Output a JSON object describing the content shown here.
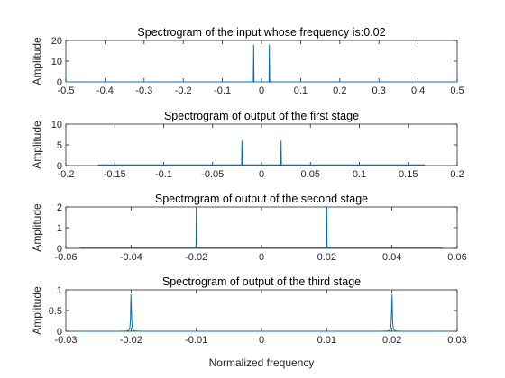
{
  "figure": {
    "xlabel_bottom": "Normalized frequency"
  },
  "colors": {
    "line": "#0072BD",
    "axis": "#262626",
    "background": "#ffffff"
  },
  "chart_data": [
    {
      "type": "line",
      "title": "Spectrogram of the input whose frequency is:0.02",
      "xlabel": "",
      "ylabel": "Amplitude",
      "xlim": [
        -0.5,
        0.5
      ],
      "ylim": [
        0,
        20
      ],
      "xticks": [
        -0.5,
        -0.4,
        -0.3,
        -0.2,
        -0.1,
        0,
        0.1,
        0.2,
        0.3,
        0.4,
        0.5
      ],
      "xtick_labels": [
        "-0.5",
        "-0.4",
        "-0.3",
        "-0.2",
        "-0.1",
        "0",
        "0.1",
        "0.2",
        "0.3",
        "0.4",
        "0.5"
      ],
      "yticks": [
        0,
        10,
        20
      ],
      "ytick_labels": [
        "0",
        "10",
        "20"
      ],
      "grid": false,
      "data_range": [
        -0.5,
        0.5
      ],
      "peaks": [
        {
          "x": -0.02,
          "y": 18
        },
        {
          "x": 0.02,
          "y": 18
        }
      ],
      "peak_shape": "spike",
      "baseline": 0
    },
    {
      "type": "line",
      "title": "Spectrogram of output of the first stage",
      "xlabel": "",
      "ylabel": "Amplitude",
      "xlim": [
        -0.2,
        0.2
      ],
      "ylim": [
        0,
        10
      ],
      "xticks": [
        -0.2,
        -0.15,
        -0.1,
        -0.05,
        0,
        0.05,
        0.1,
        0.15,
        0.2
      ],
      "xtick_labels": [
        "-0.2",
        "-0.15",
        "-0.1",
        "-0.05",
        "0",
        "0.05",
        "0.1",
        "0.15",
        "0.2"
      ],
      "yticks": [
        0,
        5,
        10
      ],
      "ytick_labels": [
        "0",
        "5",
        "10"
      ],
      "grid": false,
      "data_range": [
        -0.167,
        0.167
      ],
      "peaks": [
        {
          "x": -0.02,
          "y": 6
        },
        {
          "x": 0.02,
          "y": 6
        }
      ],
      "peak_shape": "spike",
      "baseline": 0.15
    },
    {
      "type": "line",
      "title": "Spectrogram of output of the second stage",
      "xlabel": "",
      "ylabel": "Amplitude",
      "xlim": [
        -0.06,
        0.06
      ],
      "ylim": [
        0,
        2
      ],
      "xticks": [
        -0.06,
        -0.04,
        -0.02,
        0,
        0.02,
        0.04,
        0.06
      ],
      "xtick_labels": [
        "-0.06",
        "-0.04",
        "-0.02",
        "0",
        "0.02",
        "0.04",
        "0.06"
      ],
      "yticks": [
        0,
        1,
        2
      ],
      "ytick_labels": [
        "0",
        "1",
        "2"
      ],
      "grid": false,
      "data_range": [
        -0.0556,
        0.0556
      ],
      "peaks": [
        {
          "x": -0.02,
          "y": 2.0
        },
        {
          "x": 0.02,
          "y": 2.0
        }
      ],
      "peak_shape": "spike",
      "baseline": 0.02
    },
    {
      "type": "line",
      "title": "Spectrogram of output of the third stage",
      "xlabel": "Normalized frequency",
      "ylabel": "Amplitude",
      "xlim": [
        -0.03,
        0.03
      ],
      "ylim": [
        0,
        1
      ],
      "xticks": [
        -0.03,
        -0.02,
        -0.01,
        0,
        0.01,
        0.02,
        0.03
      ],
      "xtick_labels": [
        "-0.03",
        "-0.02",
        "-0.01",
        "0",
        "0.01",
        "0.02",
        "0.03"
      ],
      "yticks": [
        0,
        0.5,
        1
      ],
      "ytick_labels": [
        "0",
        "0.5",
        "1"
      ],
      "grid": false,
      "data_range": [
        -0.0278,
        0.0278
      ],
      "peaks": [
        {
          "x": -0.02,
          "y": 0.95
        },
        {
          "x": 0.02,
          "y": 0.95
        }
      ],
      "peak_shape": "lorentzian",
      "baseline": 0
    }
  ]
}
